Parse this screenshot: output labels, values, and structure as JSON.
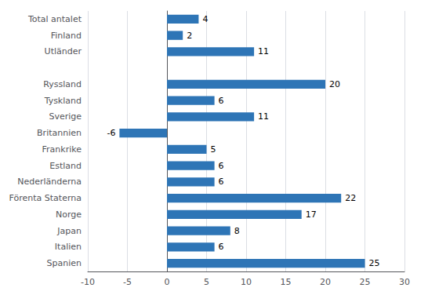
{
  "chart_data": {
    "type": "bar",
    "orientation": "horizontal",
    "categories": [
      "Spanien",
      "Italien",
      "Japan",
      "Norge",
      "Förenta Staterna",
      "Nederländerna",
      "Estland",
      "Frankrike",
      "Britannien",
      "Sverige",
      "Tyskland",
      "Ryssland",
      null,
      "Utländer",
      "Finland",
      "Total antalet"
    ],
    "values": [
      25,
      6,
      8,
      17,
      22,
      6,
      6,
      5,
      -6,
      11,
      6,
      20,
      null,
      11,
      2,
      4
    ],
    "color": "#2E75B6",
    "xlim": [
      -10,
      30
    ],
    "xticks": [
      -10,
      -5,
      0,
      5,
      10,
      15,
      20,
      25,
      30
    ],
    "grid": true,
    "data_labels": true
  }
}
